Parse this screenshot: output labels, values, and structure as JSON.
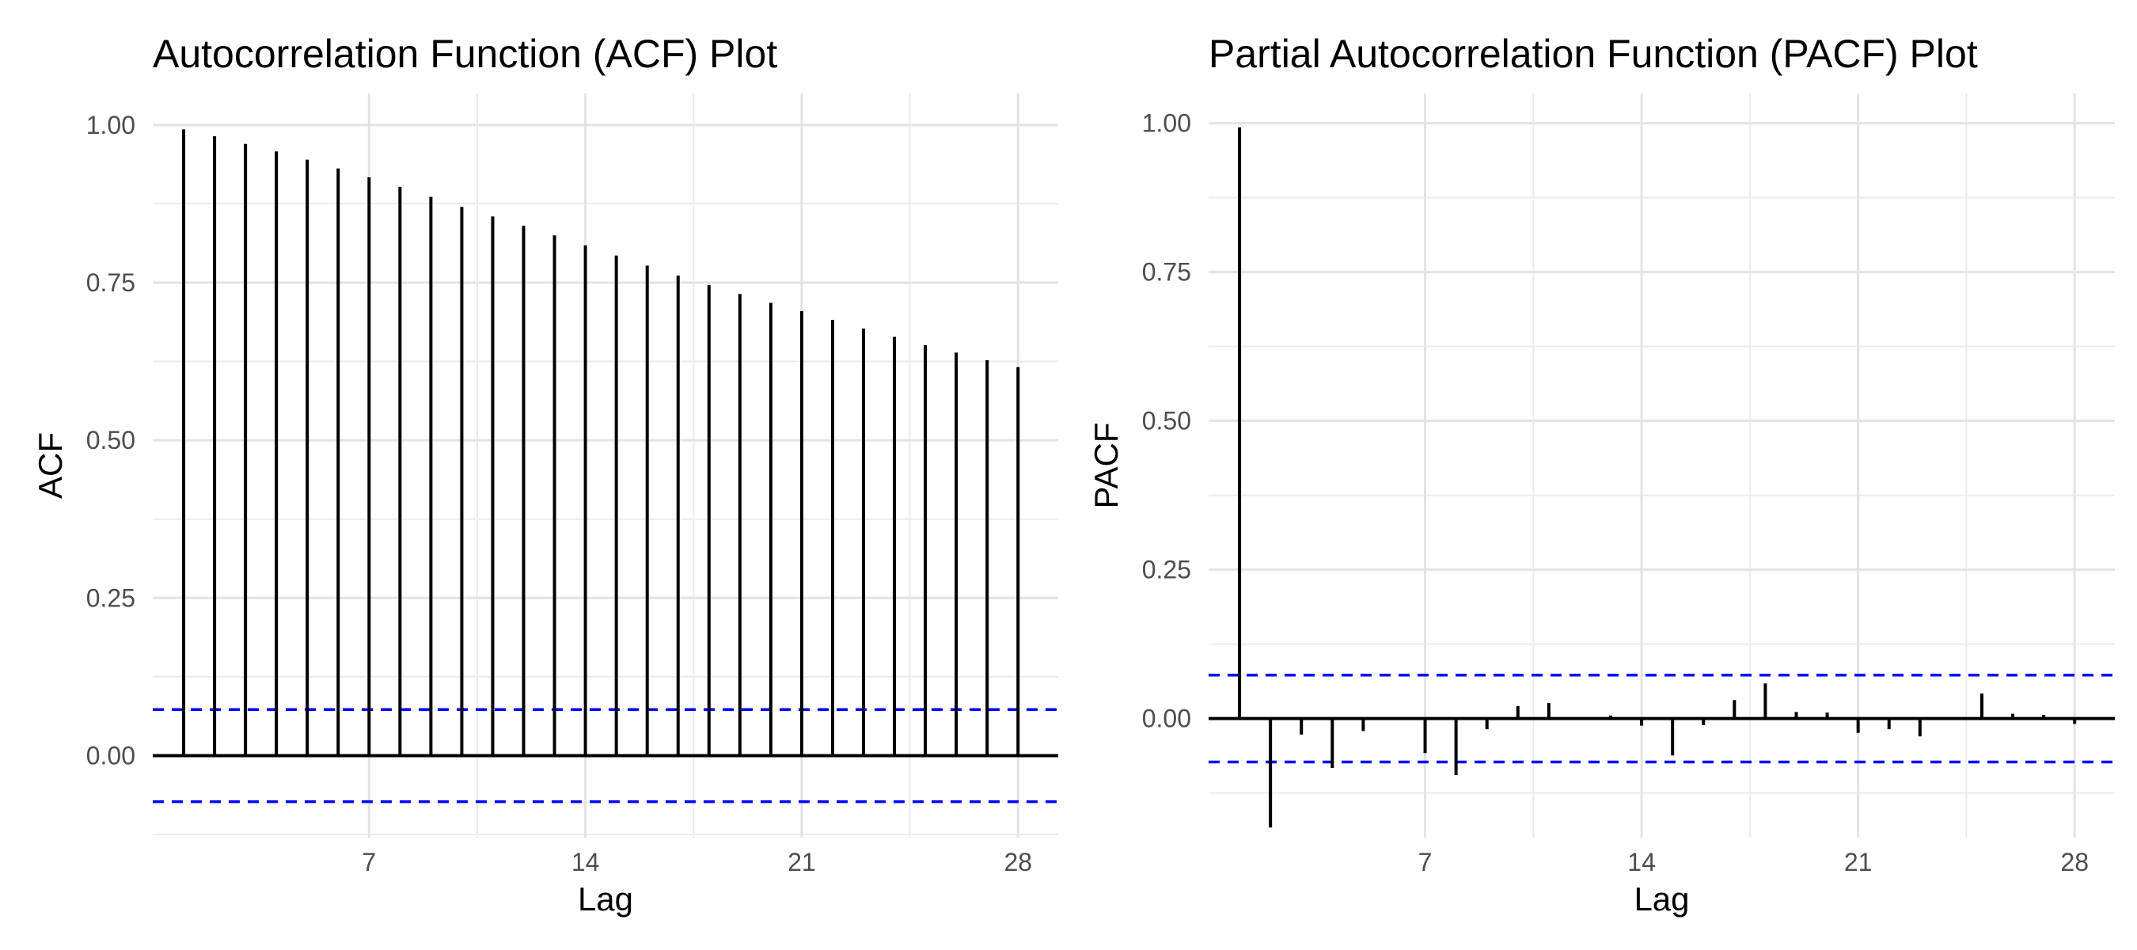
{
  "chart_data": [
    {
      "type": "bar",
      "title": "Autocorrelation Function (ACF) Plot",
      "xlabel": "Lag",
      "ylabel": "ACF",
      "xlim": [
        0,
        29.3
      ],
      "ylim": [
        -0.13,
        1.05
      ],
      "xticks": [
        7,
        14,
        21,
        28
      ],
      "yticks": [
        0,
        0.25,
        0.5,
        0.75,
        1
      ],
      "ytick_labels": [
        "0.00",
        "0.25",
        "0.50",
        "0.75",
        "1.00"
      ],
      "grid": true,
      "confidence_bound": 0.073,
      "confidence_color": "#0000ff",
      "lags": [
        1,
        2,
        3,
        4,
        5,
        6,
        7,
        8,
        9,
        10,
        11,
        12,
        13,
        14,
        15,
        16,
        17,
        18,
        19,
        20,
        21,
        22,
        23,
        24,
        25,
        26,
        27,
        28
      ],
      "values": [
        0.993,
        0.982,
        0.97,
        0.958,
        0.945,
        0.931,
        0.917,
        0.902,
        0.886,
        0.87,
        0.855,
        0.84,
        0.825,
        0.809,
        0.793,
        0.777,
        0.761,
        0.746,
        0.732,
        0.718,
        0.705,
        0.691,
        0.677,
        0.664,
        0.651,
        0.639,
        0.627,
        0.616
      ]
    },
    {
      "type": "bar",
      "title": "Partial Autocorrelation Function (PACF) Plot",
      "xlabel": "Lag",
      "ylabel": "PACF",
      "xlim": [
        0,
        29.3
      ],
      "ylim": [
        -0.2,
        1.05
      ],
      "xticks": [
        7,
        14,
        21,
        28
      ],
      "yticks": [
        0,
        0.25,
        0.5,
        0.75,
        1
      ],
      "ytick_labels": [
        "0.00",
        "0.25",
        "0.50",
        "0.75",
        "1.00"
      ],
      "grid": true,
      "confidence_bound": 0.073,
      "confidence_color": "#0000ff",
      "lags": [
        1,
        2,
        3,
        4,
        5,
        6,
        7,
        8,
        9,
        10,
        11,
        12,
        13,
        14,
        15,
        16,
        17,
        18,
        19,
        20,
        21,
        22,
        23,
        24,
        25,
        26,
        27,
        28
      ],
      "values": [
        0.993,
        -0.183,
        -0.027,
        -0.083,
        -0.021,
        0,
        -0.058,
        -0.095,
        -0.018,
        0.021,
        0.026,
        0,
        0.005,
        -0.012,
        -0.062,
        -0.011,
        0.031,
        0.059,
        0.011,
        0.01,
        -0.024,
        -0.018,
        -0.03,
        0,
        0.042,
        0.008,
        0.006,
        -0.009
      ]
    }
  ]
}
